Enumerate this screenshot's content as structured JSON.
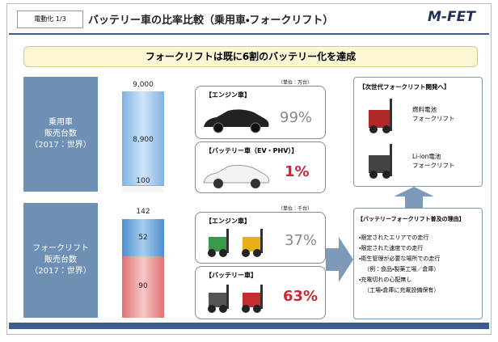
{
  "header": {
    "section": "電動化 1/3",
    "title": "バッテリー車の比率比較（乗用車・フォークリフト）",
    "logo": "M-FET"
  },
  "banner": "フォークリフトは既に6割のバッテリー化を達成",
  "passenger": {
    "label": [
      "乗用車",
      "販売台数",
      "（2017：世界）"
    ],
    "unit": "（単位：万台）",
    "total": "9,000",
    "engine_count": "8,900",
    "battery_count": "100",
    "engine": {
      "title": "【エンジン車】",
      "share": "99%"
    },
    "battery": {
      "title": "【バッテリー車（EV・PHV）】",
      "share": "1%"
    }
  },
  "forklift": {
    "label": [
      "フォークリフト",
      "販売台数",
      "（2017：世界）"
    ],
    "unit": "（単位：千台）",
    "total": "142",
    "engine_count": "52",
    "battery_count": "90",
    "engine": {
      "title": "【エンジン車】",
      "share": "37%"
    },
    "battery": {
      "title": "【バッテリー車】",
      "share": "63%"
    }
  },
  "next_gen": {
    "title": "【次世代フォークリフト開発へ】",
    "items": [
      [
        "燃料電池",
        "フォークリフト"
      ],
      [
        "Li-ion電池",
        "フォークリフト"
      ]
    ]
  },
  "reasons": {
    "title": "【バッテリーフォークリフト普及の理由】",
    "items": [
      "・限定されたエリアでの走行",
      "・限定された速度での走行",
      "・衛生管理が必要な場所での走行",
      "（例：食品・製薬工場／倉庫）",
      "・充電切れの心配無し",
      "（工場・倉庫に充電設備保有）"
    ]
  }
}
